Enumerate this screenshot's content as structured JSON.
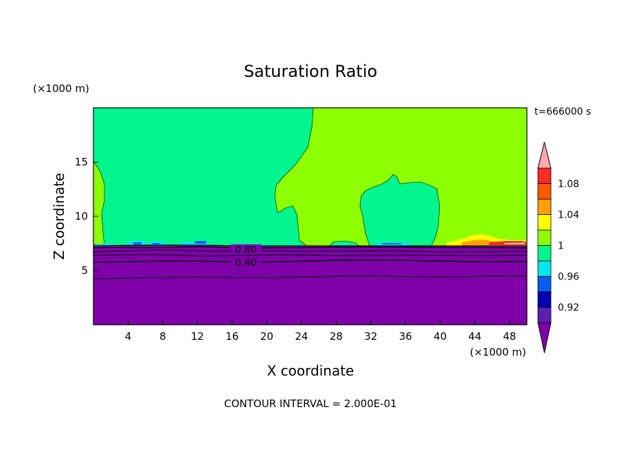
{
  "chart_data": {
    "type": "heatmap",
    "title": "Saturation Ratio",
    "xlabel": "X coordinate",
    "ylabel": "Z coordinate",
    "x_unit": "(×1000 m)",
    "y_unit": "(×1000 m)",
    "time_label": "t=666000 s",
    "footer": "CONTOUR INTERVAL = 2.000E-01",
    "xlim": [
      0,
      50
    ],
    "ylim": [
      0,
      20
    ],
    "x_ticks": [
      4,
      8,
      12,
      16,
      20,
      24,
      28,
      32,
      36,
      40,
      44,
      48
    ],
    "y_ticks": [
      5,
      10,
      15
    ],
    "contour_labels": [
      "0.80",
      "0.40"
    ],
    "colorbar": {
      "tick_labels": [
        "0.92",
        "0.96",
        "1",
        "1.04",
        "1.08"
      ],
      "colors": [
        "#5b1fb3",
        "#0000b4",
        "#0a5cf0",
        "#00e6f0",
        "#00f58c",
        "#8cff00",
        "#ffff00",
        "#ffa000",
        "#ff5a00",
        "#ff2a2a"
      ],
      "over_color": "#ffaaaa",
      "under_color": "#7d00a8"
    },
    "regions": {
      "dry_layer_color": "#7d00a8",
      "upper_background_color": "#8cff00",
      "saturated_color": "#00f58c"
    }
  }
}
